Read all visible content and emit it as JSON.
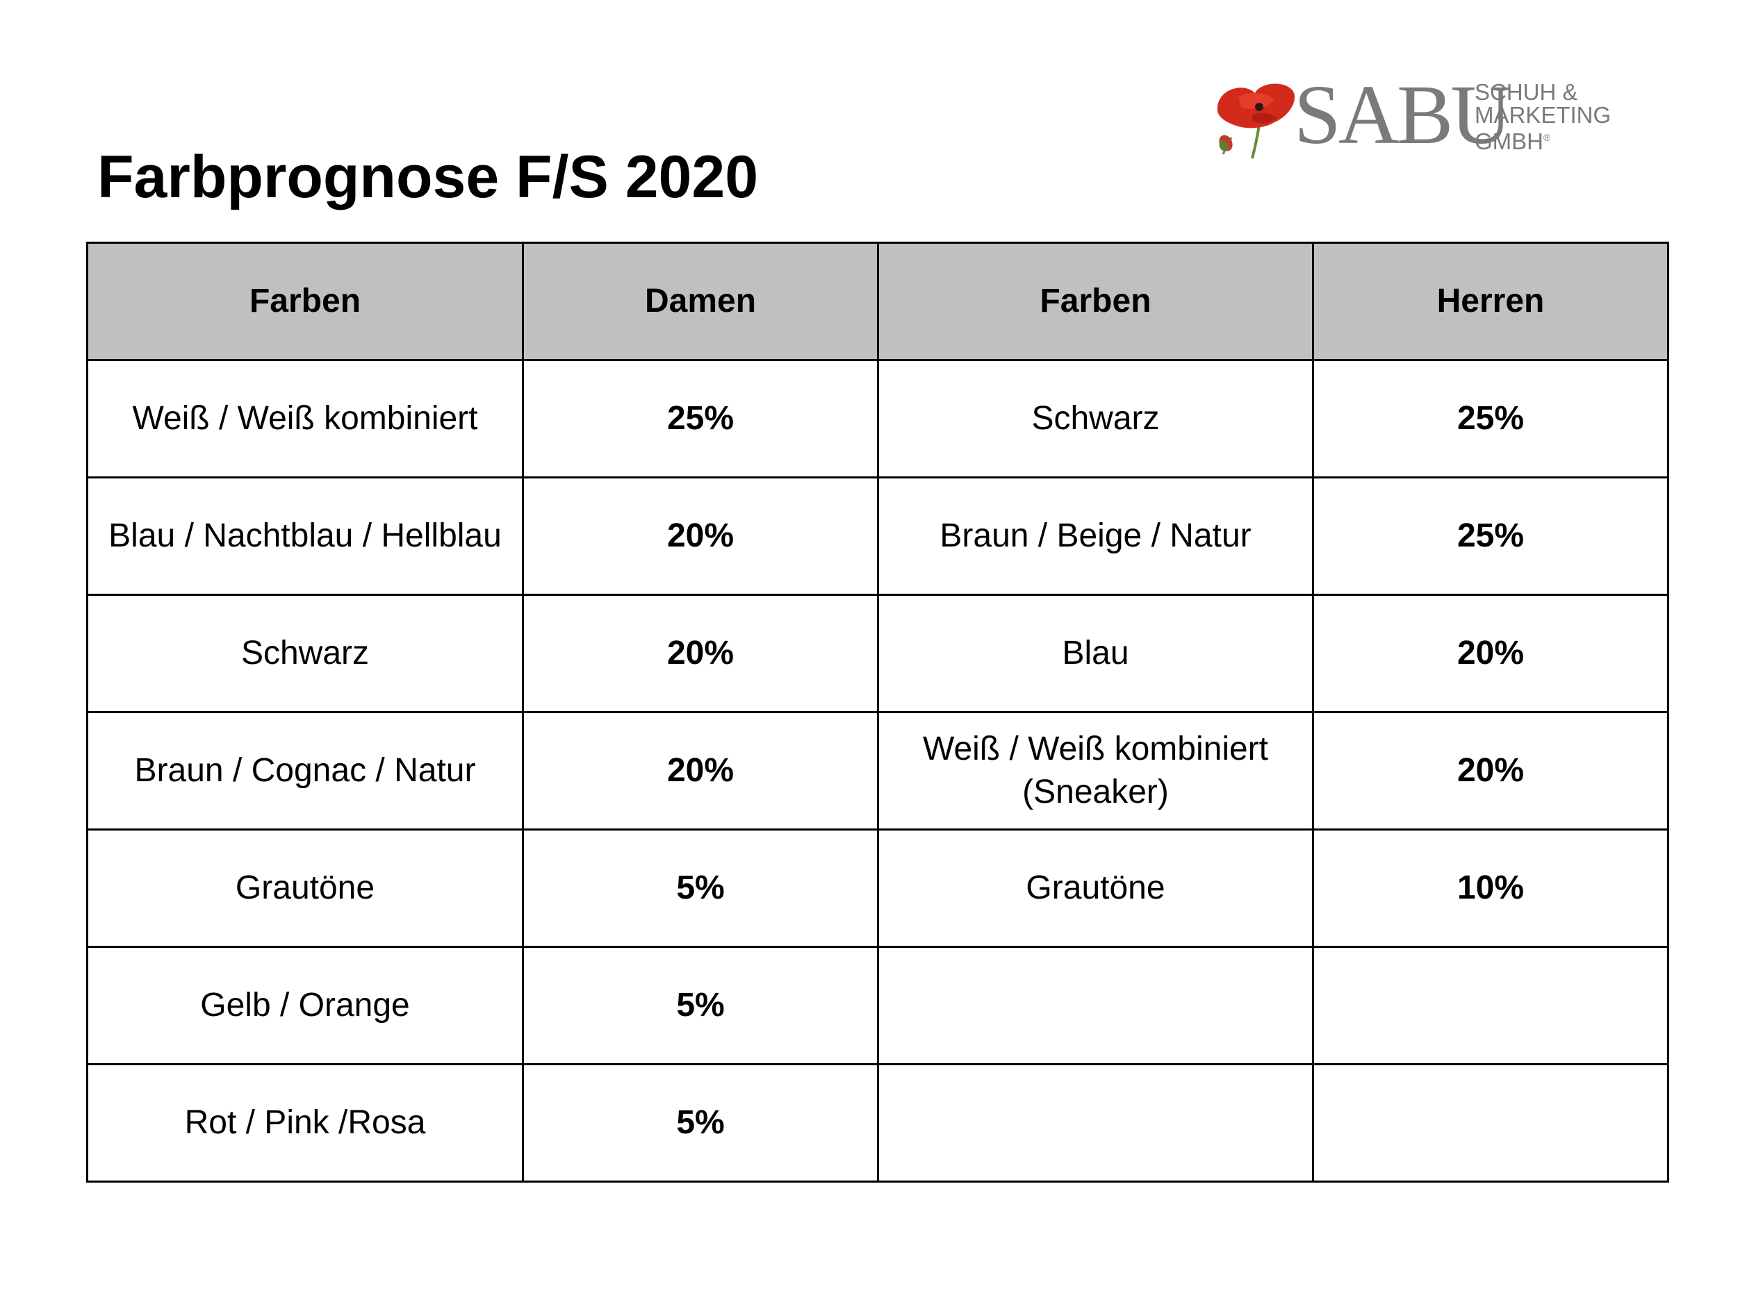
{
  "title": "Farbprognose F/S 2020",
  "logo": {
    "brand": "SABU",
    "sub_lines": [
      "SCHUH &",
      "MARKETING",
      "GMBH"
    ],
    "registered_mark": "®",
    "accent_color": "#d42a1c",
    "text_color": "#7a7a7a"
  },
  "table": {
    "header_bg": "#c0c0c0",
    "headers": [
      "Farben",
      "Damen",
      "Farben",
      "Herren"
    ],
    "rows": [
      {
        "damen_farbe": "Weiß / Weiß kombiniert",
        "damen_pct": "25%",
        "herren_farbe": "Schwarz",
        "herren_pct": "25%"
      },
      {
        "damen_farbe": "Blau / Nachtblau / Hellblau",
        "damen_pct": "20%",
        "herren_farbe": "Braun / Beige / Natur",
        "herren_pct": "25%"
      },
      {
        "damen_farbe": "Schwarz",
        "damen_pct": "20%",
        "herren_farbe": "Blau",
        "herren_pct": "20%"
      },
      {
        "damen_farbe": "Braun / Cognac / Natur",
        "damen_pct": "20%",
        "herren_farbe": "Weiß / Weiß kombiniert (Sneaker)",
        "herren_pct": "20%"
      },
      {
        "damen_farbe": "Grautöne",
        "damen_pct": "5%",
        "herren_farbe": "Grautöne",
        "herren_pct": "10%"
      },
      {
        "damen_farbe": "Gelb / Orange",
        "damen_pct": "5%",
        "herren_farbe": "",
        "herren_pct": ""
      },
      {
        "damen_farbe": "Rot / Pink /Rosa",
        "damen_pct": "5%",
        "herren_farbe": "",
        "herren_pct": ""
      }
    ]
  }
}
